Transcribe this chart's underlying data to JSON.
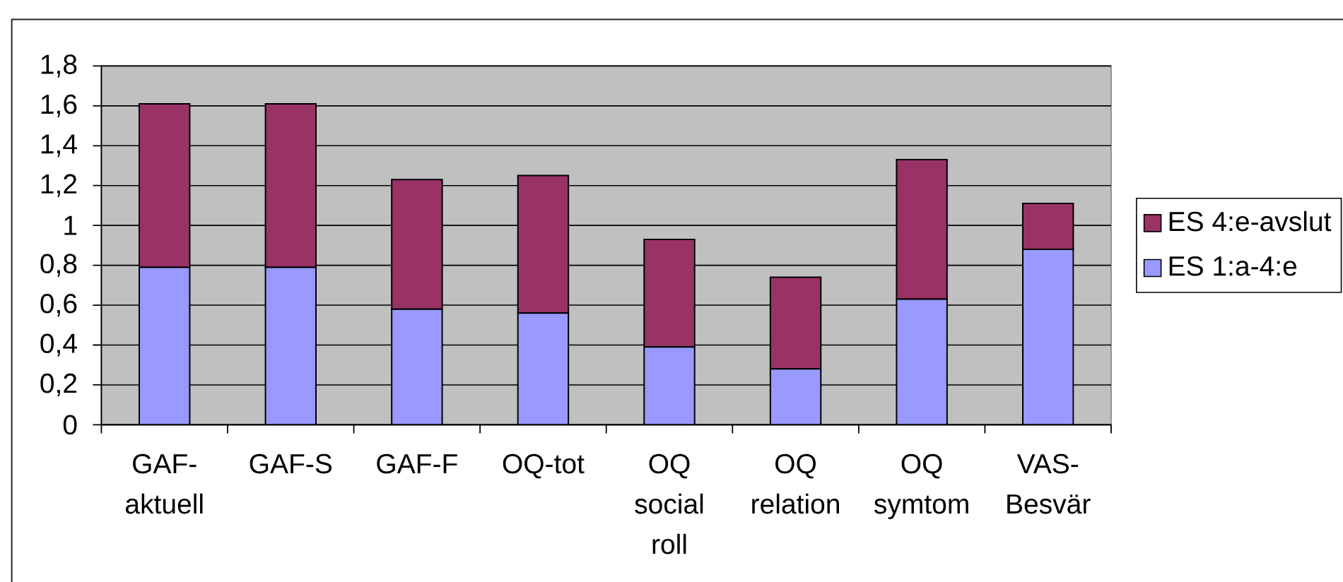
{
  "chart_data": {
    "type": "bar",
    "stacked": true,
    "categories": [
      "GAF-aktuell",
      "GAF-S",
      "GAF-F",
      "OQ-tot",
      "OQ social roll",
      "OQ relation",
      "OQ symtom",
      "VAS-Besvär"
    ],
    "series": [
      {
        "name": "ES 1:a-4:e",
        "color": "#9999ff",
        "values": [
          0.79,
          0.79,
          0.58,
          0.56,
          0.39,
          0.28,
          0.63,
          0.88
        ]
      },
      {
        "name": "ES 4:e-avslut",
        "color": "#993366",
        "values": [
          0.82,
          0.82,
          0.65,
          0.69,
          0.54,
          0.46,
          0.7,
          0.23
        ]
      }
    ],
    "ylim": [
      0,
      1.8
    ],
    "yticks": [
      0,
      {
        "value": 0.2,
        "label": "0,2"
      },
      {
        "value": 0.4,
        "label": "0,4"
      },
      {
        "value": 0.6,
        "label": "0,6"
      },
      {
        "value": 0.8,
        "label": "0,8"
      },
      1,
      {
        "value": 1.2,
        "label": "1,2"
      },
      {
        "value": 1.4,
        "label": "1,4"
      },
      {
        "value": 1.6,
        "label": "1,6"
      },
      {
        "value": 1.8,
        "label": "1,8"
      }
    ],
    "grid": "y",
    "legend": "right"
  }
}
